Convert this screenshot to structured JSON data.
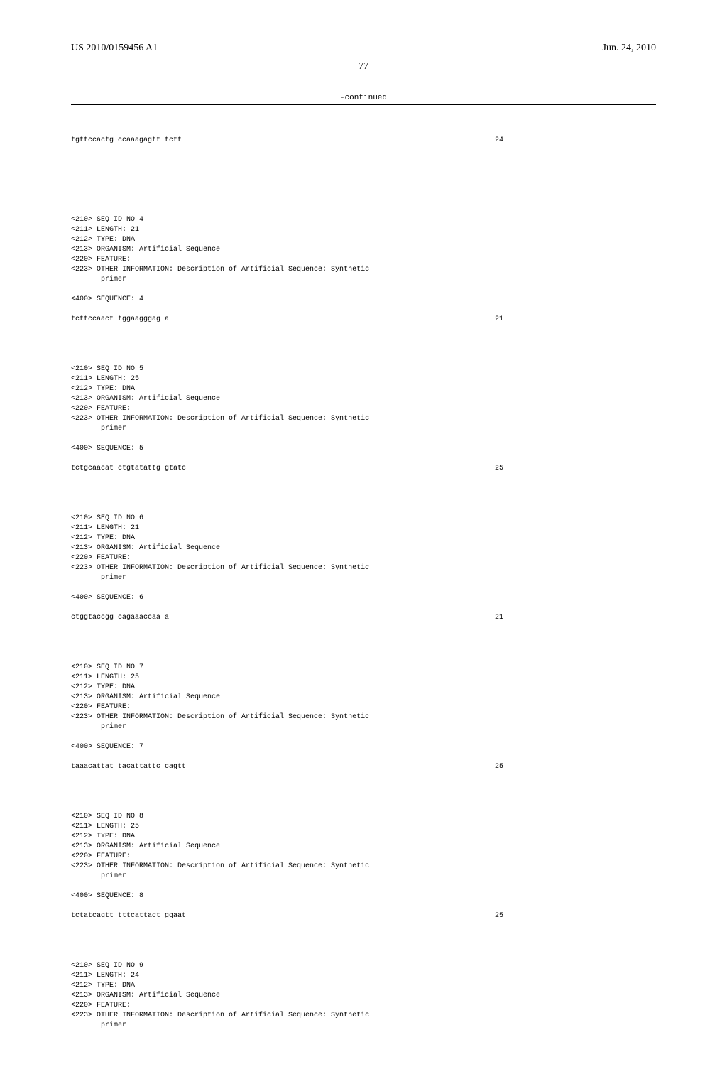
{
  "header": {
    "pub_num": "US 2010/0159456 A1",
    "pub_date": "Jun. 24, 2010",
    "page_num": "77",
    "continued": "-continued"
  },
  "seq3_tail": {
    "sequence": "tgttccactg ccaaagagtt tctt",
    "length": "24"
  },
  "blocks": [
    {
      "id": "4",
      "length": "21",
      "type": "DNA",
      "organism": "Artificial Sequence",
      "feature": "FEATURE:",
      "other_info": "OTHER INFORMATION: Description of Artificial Sequence: Synthetic",
      "other_info2": "primer",
      "seq_label": "SEQUENCE: 4",
      "sequence": "tcttccaact tggaagggag a",
      "seq_len": "21"
    },
    {
      "id": "5",
      "length": "25",
      "type": "DNA",
      "organism": "Artificial Sequence",
      "feature": "FEATURE:",
      "other_info": "OTHER INFORMATION: Description of Artificial Sequence: Synthetic",
      "other_info2": "primer",
      "seq_label": "SEQUENCE: 5",
      "sequence": "tctgcaacat ctgtatattg gtatc",
      "seq_len": "25"
    },
    {
      "id": "6",
      "length": "21",
      "type": "DNA",
      "organism": "Artificial Sequence",
      "feature": "FEATURE:",
      "other_info": "OTHER INFORMATION: Description of Artificial Sequence: Synthetic",
      "other_info2": "primer",
      "seq_label": "SEQUENCE: 6",
      "sequence": "ctggtaccgg cagaaaccaa a",
      "seq_len": "21"
    },
    {
      "id": "7",
      "length": "25",
      "type": "DNA",
      "organism": "Artificial Sequence",
      "feature": "FEATURE:",
      "other_info": "OTHER INFORMATION: Description of Artificial Sequence: Synthetic",
      "other_info2": "primer",
      "seq_label": "SEQUENCE: 7",
      "sequence": "taaacattat tacattattc cagtt",
      "seq_len": "25"
    },
    {
      "id": "8",
      "length": "25",
      "type": "DNA",
      "organism": "Artificial Sequence",
      "feature": "FEATURE:",
      "other_info": "OTHER INFORMATION: Description of Artificial Sequence: Synthetic",
      "other_info2": "primer",
      "seq_label": "SEQUENCE: 8",
      "sequence": "tctatcagtt tttcattact ggaat",
      "seq_len": "25"
    },
    {
      "id": "9",
      "length": "24",
      "type": "DNA",
      "organism": "Artificial Sequence",
      "feature": "FEATURE:",
      "other_info": "OTHER INFORMATION: Description of Artificial Sequence: Synthetic",
      "other_info2": "primer",
      "seq_label": "",
      "sequence": "",
      "seq_len": ""
    }
  ],
  "labels": {
    "seq_id_prefix": "<210> SEQ ID NO ",
    "length_prefix": "<211> LENGTH: ",
    "type_prefix": "<212> TYPE: ",
    "organism_prefix": "<213> ORGANISM: ",
    "feature_prefix": "<220> ",
    "other_prefix": "<223> ",
    "seq_prefix": "<400> "
  }
}
